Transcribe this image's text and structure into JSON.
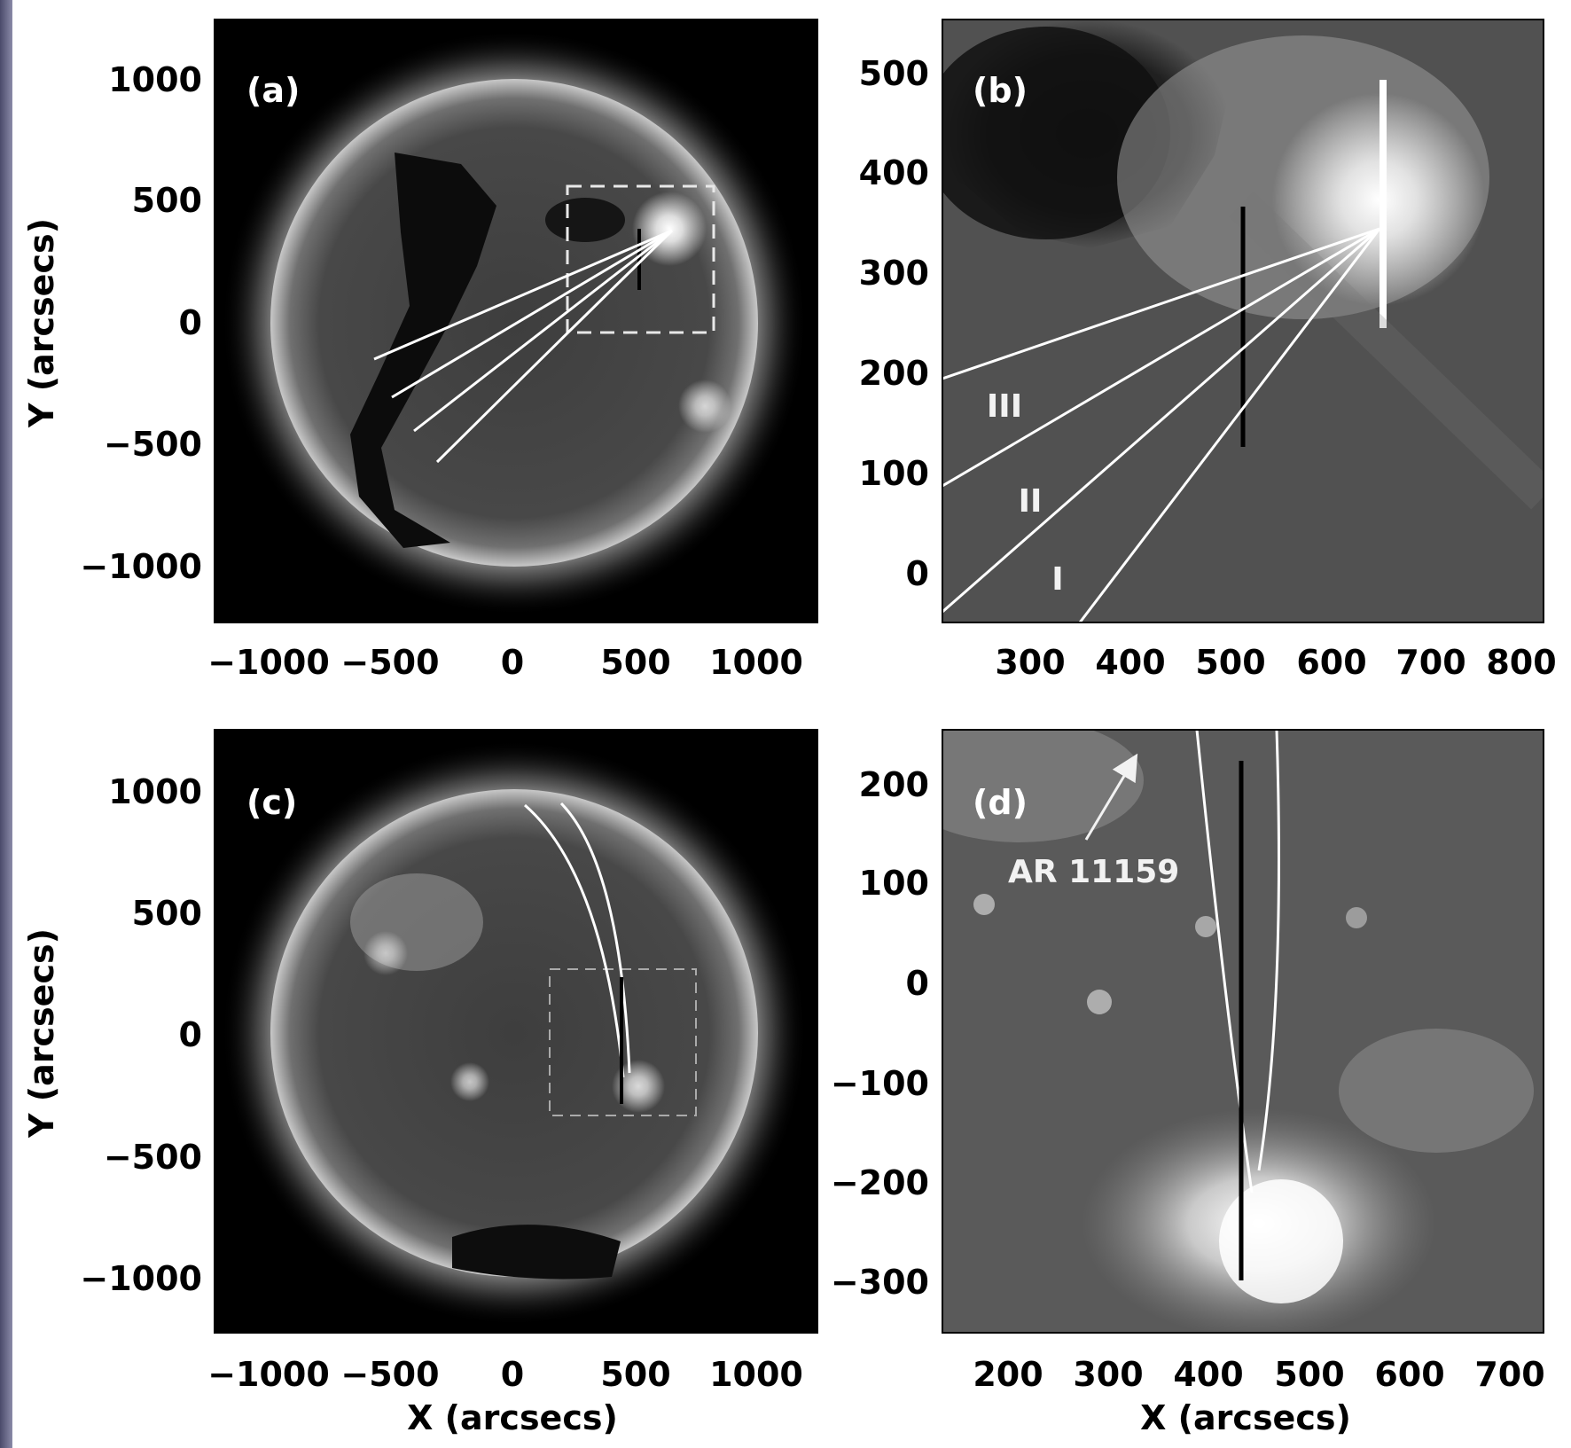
{
  "figure": {
    "x_axis_title": "X (arcsecs)",
    "y_axis_title": "Y (arcsecs)",
    "panels": {
      "a": {
        "label": "(a)",
        "x_ticks": [
          "−1000",
          "−500",
          "0",
          "500",
          "1000"
        ],
        "y_ticks": [
          "1000",
          "500",
          "0",
          "−500",
          "−1000"
        ]
      },
      "b": {
        "label": "(b)",
        "x_ticks": [
          "300",
          "400",
          "500",
          "600",
          "700",
          "800"
        ],
        "y_ticks": [
          "500",
          "400",
          "300",
          "200",
          "100",
          "0"
        ],
        "path_labels": [
          "III",
          "II",
          "I"
        ]
      },
      "c": {
        "label": "(c)",
        "x_ticks": [
          "−1000",
          "−500",
          "0",
          "500",
          "1000"
        ],
        "y_ticks": [
          "1000",
          "500",
          "0",
          "−500",
          "−1000"
        ]
      },
      "d": {
        "label": "(d)",
        "x_ticks": [
          "200",
          "300",
          "400",
          "500",
          "600",
          "700"
        ],
        "y_ticks": [
          "200",
          "100",
          "0",
          "−100",
          "−200",
          "−300"
        ],
        "annotation": "AR 11159"
      }
    }
  }
}
